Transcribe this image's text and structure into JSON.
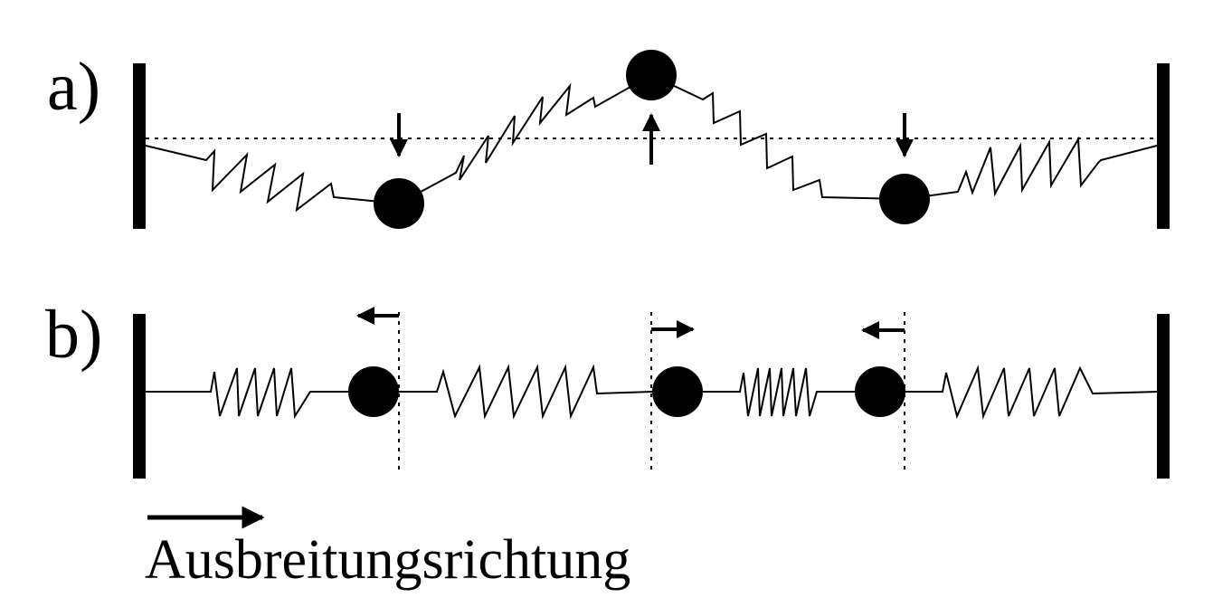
{
  "labels": {
    "panel_a": "a)",
    "panel_b": "b)",
    "direction": "Ausbreitungsrichtung"
  },
  "colors": {
    "ink": "#000000",
    "background": "#ffffff"
  },
  "panels": {
    "a": {
      "wave": "transverse",
      "mass_displacements": [
        "down",
        "up",
        "down"
      ]
    },
    "b": {
      "wave": "longitudinal",
      "mass_displacements": [
        "left",
        "right",
        "left"
      ]
    }
  }
}
